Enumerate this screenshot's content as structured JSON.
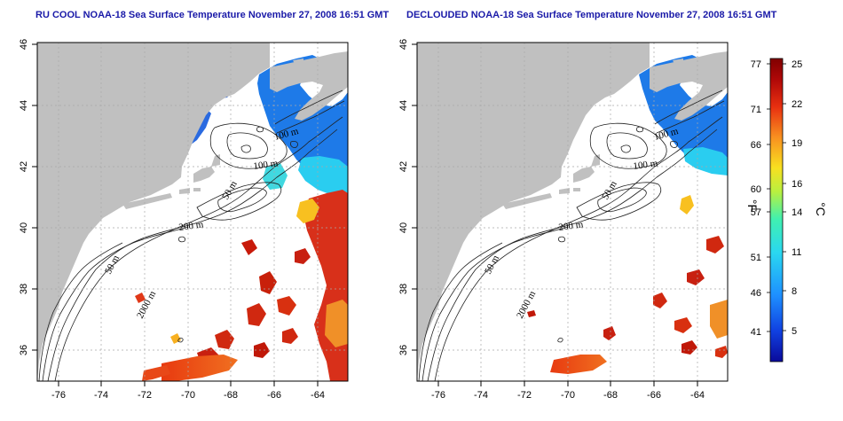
{
  "titles": {
    "left": "RU COOL NOAA-18 Sea Surface Temperature November 27, 2008 16:51 GMT",
    "right": "DECLOUDED NOAA-18 Sea Surface Temperature November 27, 2008 16:51 GMT"
  },
  "axes": {
    "lon_ticks": [
      "-76",
      "-74",
      "-72",
      "-70",
      "-68",
      "-66",
      "-64"
    ],
    "lat_ticks": [
      "46",
      "44",
      "42",
      "40",
      "38",
      "36"
    ]
  },
  "contour_labels": [
    "100 m",
    "100 m",
    "50 m",
    "200 m",
    "50 m",
    "2000 m"
  ],
  "colorbar": {
    "fahrenheit_ticks": [
      "77",
      "71",
      "66",
      "60",
      "57",
      "51",
      "46",
      "41"
    ],
    "celsius_ticks": [
      "25",
      "22",
      "19",
      "16",
      "14",
      "11",
      "8",
      "5"
    ],
    "fahrenheit_unit": "°F",
    "celsius_unit": "°C",
    "colors": [
      "#0a0a9a",
      "#1040e0",
      "#1e90ff",
      "#2ad8f0",
      "#40f0b0",
      "#b8f040",
      "#f8e020",
      "#f89020",
      "#e83010",
      "#b00808",
      "#800000"
    ]
  },
  "colors": {
    "land": "#c0c0c0",
    "grid": "#a8a8a8",
    "contour": "#202020",
    "title": "#1a1aa8"
  }
}
